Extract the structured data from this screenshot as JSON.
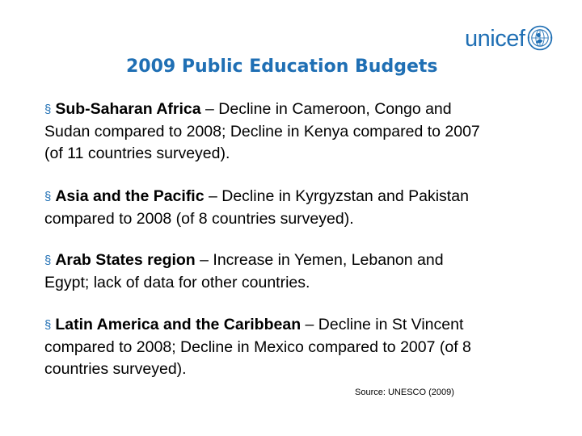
{
  "logo": {
    "text": "unicef"
  },
  "title": "2009 Public Education Budgets",
  "bullets": [
    {
      "marker": "§",
      "region": "Sub-Saharan Africa",
      "lines": [
        " – Decline in Cameroon, Congo and",
        "Sudan compared to 2008; Decline in Kenya compared to 2007",
        "(of 11 countries surveyed)."
      ]
    },
    {
      "marker": "§",
      "region": "Asia and the Pacific",
      "lines": [
        " – Decline in Kyrgyzstan and Pakistan",
        "compared to 2008 (of 8 countries surveyed)."
      ]
    },
    {
      "marker": "§",
      "region": "Arab States region",
      "lines": [
        " – Increase in Yemen, Lebanon and",
        "Egypt; lack of data for other countries."
      ]
    },
    {
      "marker": "§",
      "region": "Latin America and the Caribbean",
      "lines": [
        " – Decline in St Vincent",
        "compared to 2008; Decline  in Mexico compared to 2007 (of 8",
        "countries surveyed)."
      ]
    }
  ],
  "source": "Source: UNESCO (2009)",
  "colors": {
    "accent": "#1f6fb4",
    "text": "#000000",
    "background": "#ffffff"
  }
}
